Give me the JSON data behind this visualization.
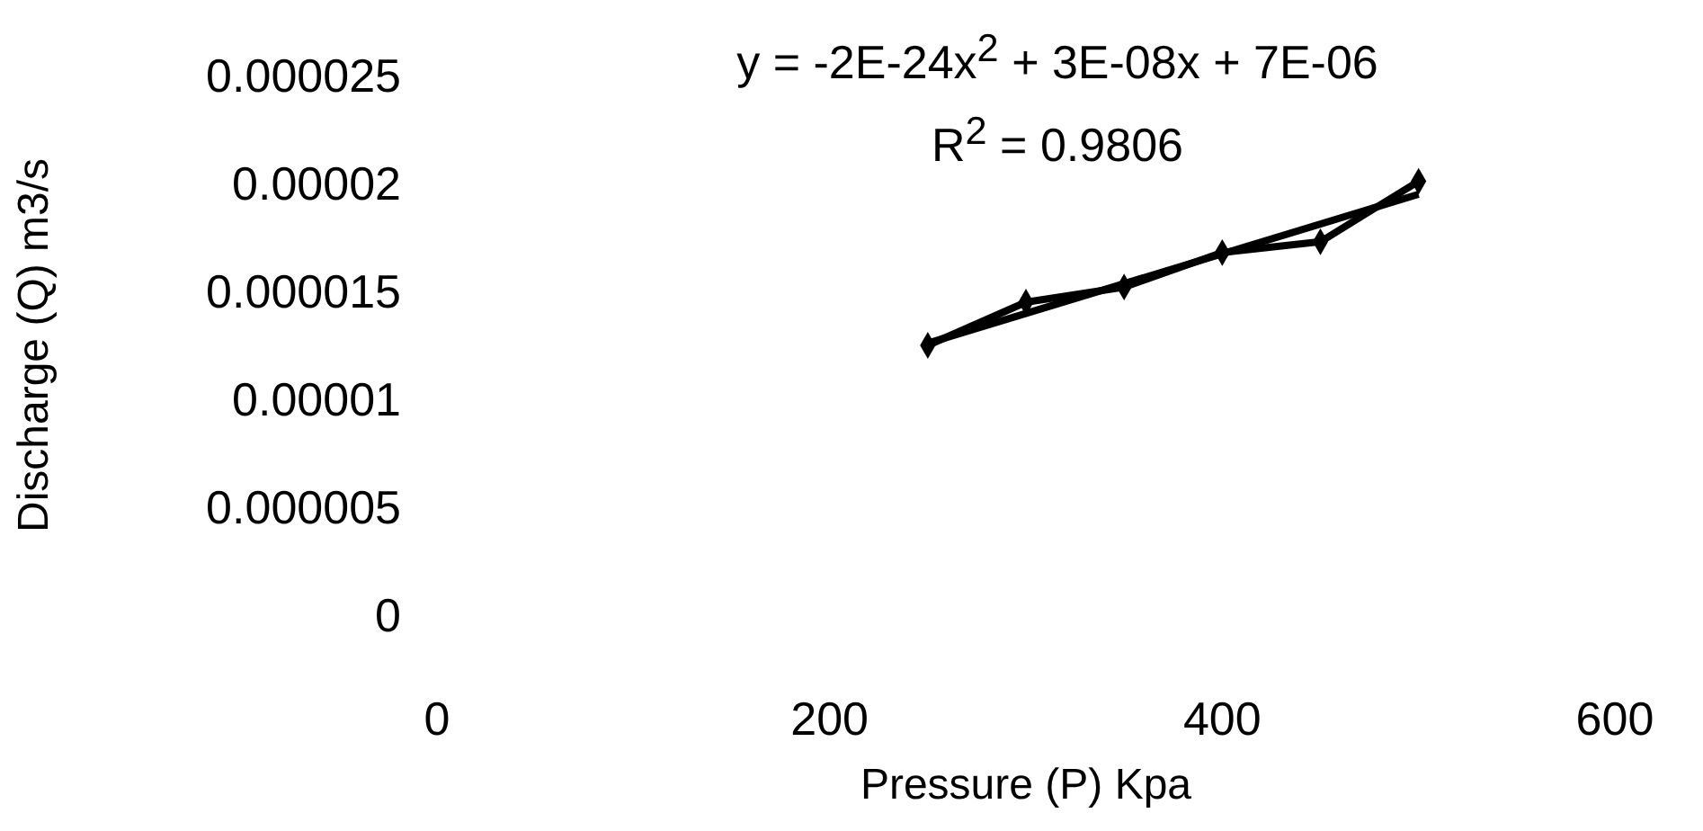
{
  "chart_data": {
    "type": "line",
    "xlabel": "Pressure (P) Kpa",
    "ylabel": "Discharge (Q) m3/s",
    "annotations": [
      "y = -2E-24x$^{2}$ + 3E-08x + 7E-06",
      "R$^{2}$ = 0.9806"
    ],
    "xlim": [
      0,
      600
    ],
    "xticks": [
      0,
      200,
      400,
      600
    ],
    "ylim": [
      0,
      2.5e-05
    ],
    "yticks": [
      0,
      {
        "value": 5e-06,
        "label": "0.000005"
      },
      {
        "value": 1e-05,
        "label": "0.00001"
      },
      {
        "value": 1.5e-05,
        "label": "0.000015"
      },
      {
        "value": 2e-05,
        "label": "0.00002"
      },
      {
        "value": 2.5e-05,
        "label": "0.000025"
      }
    ],
    "marker": "diamond",
    "line_style": "solid",
    "grid": false,
    "legend": false,
    "series": [
      {
        "color": "#000000",
        "x": [
          250,
          300,
          350,
          400,
          450,
          500
        ],
        "values": [
          1.25e-05,
          1.45e-05,
          1.52e-05,
          1.68e-05,
          1.73e-05,
          2.01e-05
        ]
      },
      {
        "marker": "none",
        "color": "#000000",
        "x": [
          250,
          500
        ],
        "values": [
          1.26e-05,
          1.95e-05
        ]
      }
    ]
  }
}
